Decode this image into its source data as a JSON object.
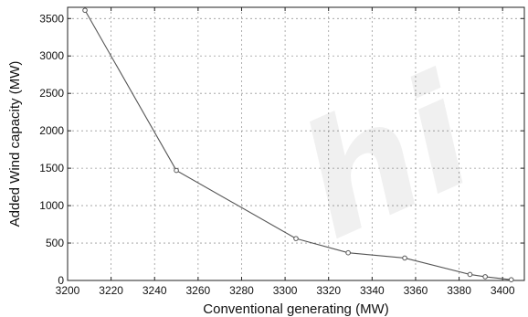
{
  "chart_data": {
    "type": "line",
    "title": "",
    "xlabel": "Conventional generating (MW)",
    "ylabel": "Added Wind capacity (MW)",
    "xlim": [
      3200,
      3410
    ],
    "ylim": [
      0,
      3650
    ],
    "xticks": [
      3200,
      3220,
      3240,
      3260,
      3280,
      3300,
      3320,
      3340,
      3360,
      3380,
      3400
    ],
    "yticks": [
      0,
      500,
      1000,
      1500,
      2000,
      2500,
      3000,
      3500
    ],
    "grid": true,
    "series": [
      {
        "x": [
          3208,
          3250,
          3305,
          3329,
          3355,
          3385,
          3392,
          3404
        ],
        "y": [
          3610,
          1470,
          560,
          370,
          300,
          80,
          50,
          10
        ]
      }
    ]
  },
  "colors": {
    "line": "#555555",
    "grid": "#9a9a9a",
    "axis": "#222222"
  },
  "watermark": "hi"
}
